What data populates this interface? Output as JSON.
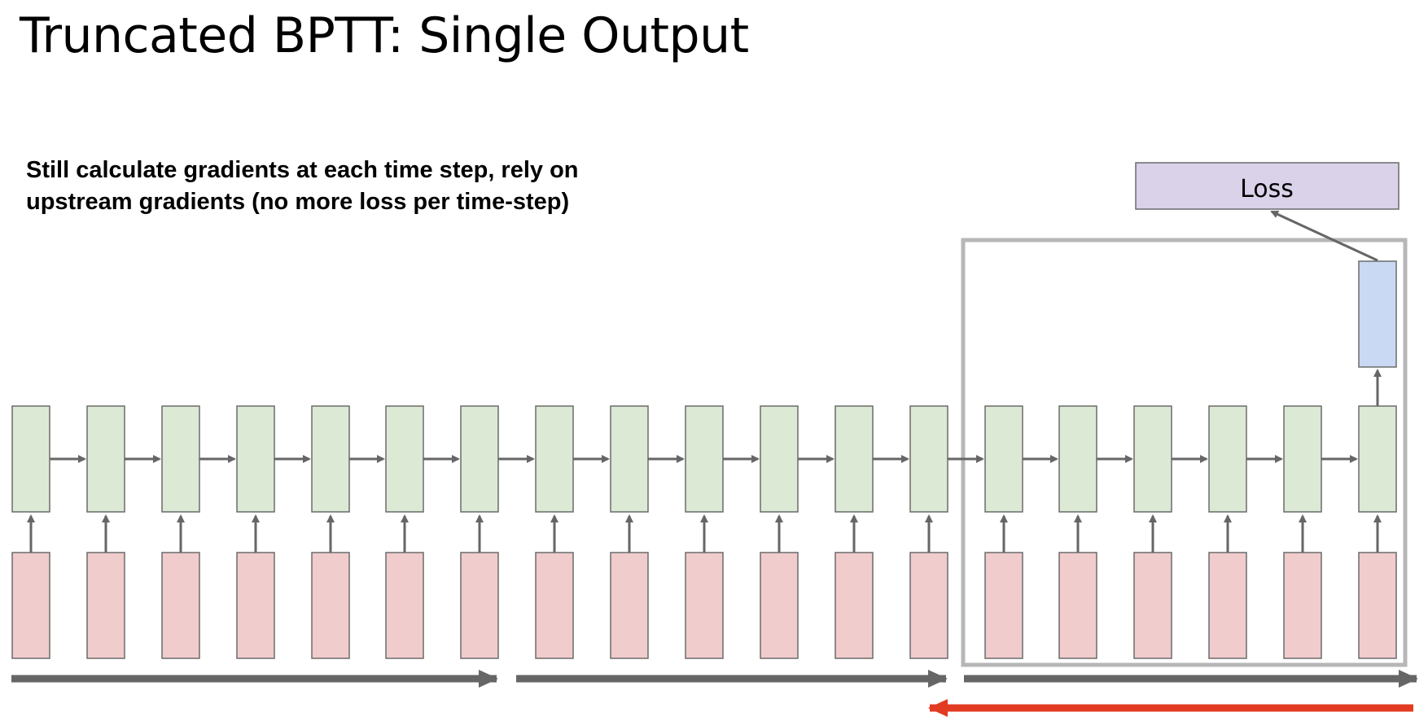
{
  "slide": {
    "title": "Truncated BPTT: Single Output",
    "subtitle_line1": "Still calculate gradients at each time step, rely on",
    "subtitle_line2": "upstream gradients (no more loss per time-step)"
  },
  "diagram": {
    "loss_label": "Loss",
    "num_timesteps": 19,
    "chunks": 3,
    "highlighted_chunk": 3,
    "colors": {
      "hidden_fill": "#dce9d5",
      "input_fill": "#f0cccc",
      "output_fill": "#cad9f3",
      "loss_fill": "#d9d2e9",
      "box_stroke": "#6b6b6b",
      "window_stroke": "#b7b7b7",
      "forward_arrow": "#666666",
      "backward_arrow": "#e23b22"
    }
  }
}
